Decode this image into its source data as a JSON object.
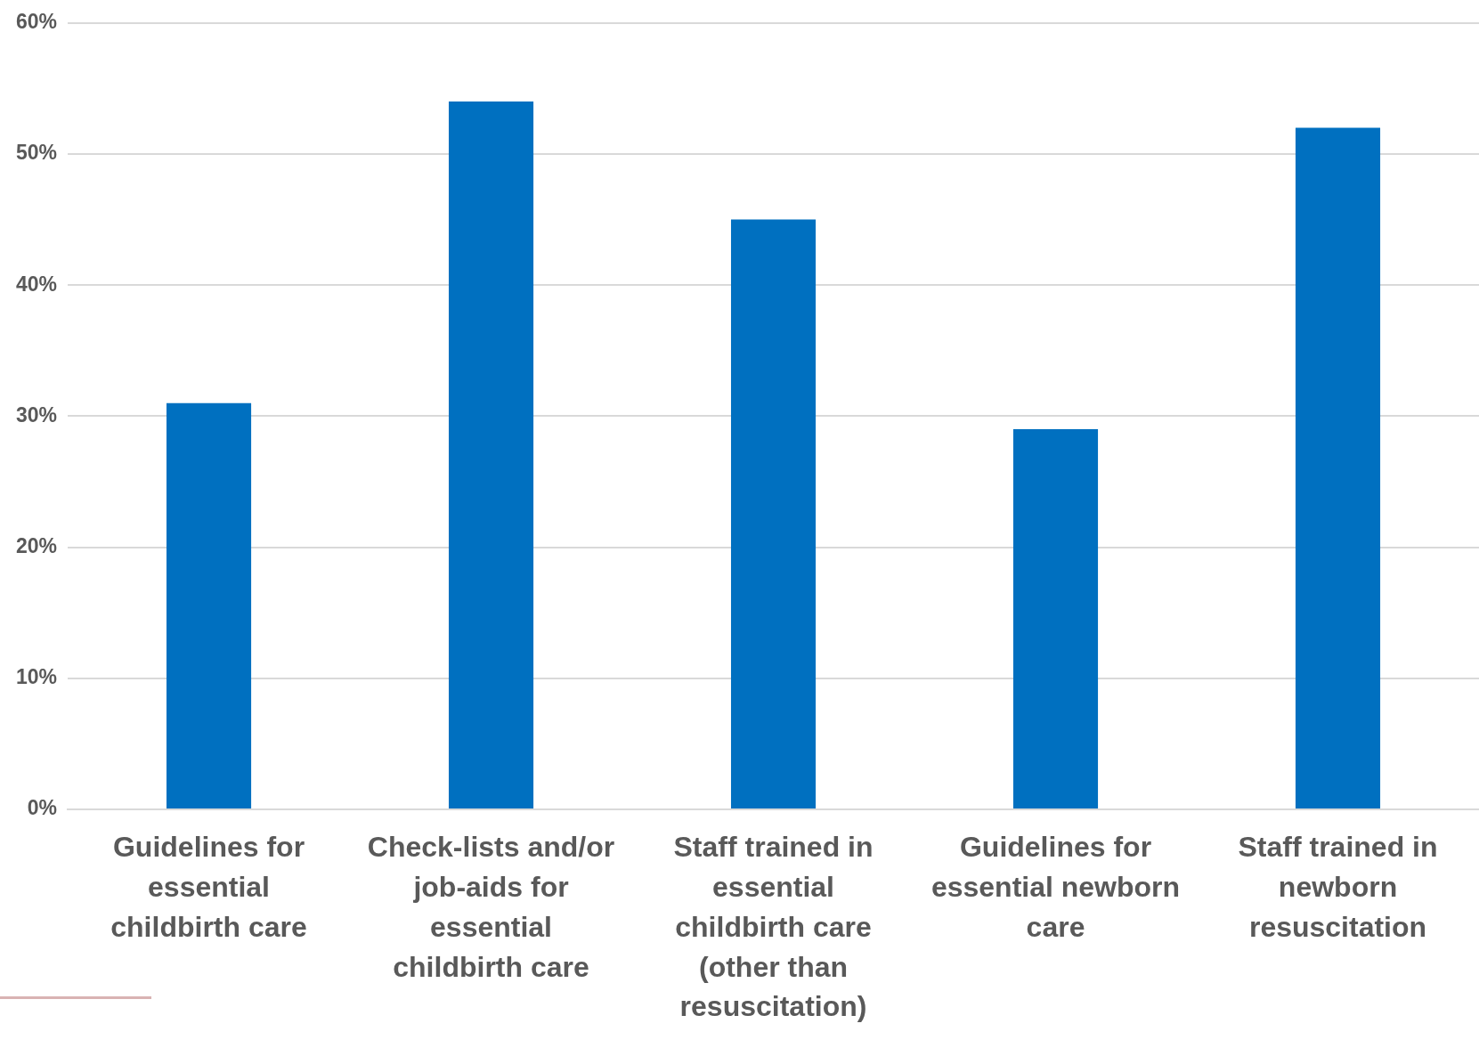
{
  "chart_data": {
    "type": "bar",
    "categories": [
      "Guidelines for essential childbirth care",
      "Check-lists and/or job-aids for essential childbirth care",
      "Staff trained in essential childbirth care (other than resuscitation)",
      "Guidelines for essential newborn care",
      "Staff trained in newborn resuscitation"
    ],
    "values": [
      31,
      54,
      45,
      29,
      52
    ],
    "color": "#0070c0",
    "ylim": [
      0,
      60
    ],
    "yticks": [
      {
        "value": 0,
        "label": "0%"
      },
      {
        "value": 10,
        "label": "10%"
      },
      {
        "value": 20,
        "label": "20%"
      },
      {
        "value": 30,
        "label": "30%"
      },
      {
        "value": 40,
        "label": "40%"
      },
      {
        "value": 50,
        "label": "50%"
      },
      {
        "value": 60,
        "label": "60%"
      }
    ],
    "grid": "y",
    "legend": false
  }
}
